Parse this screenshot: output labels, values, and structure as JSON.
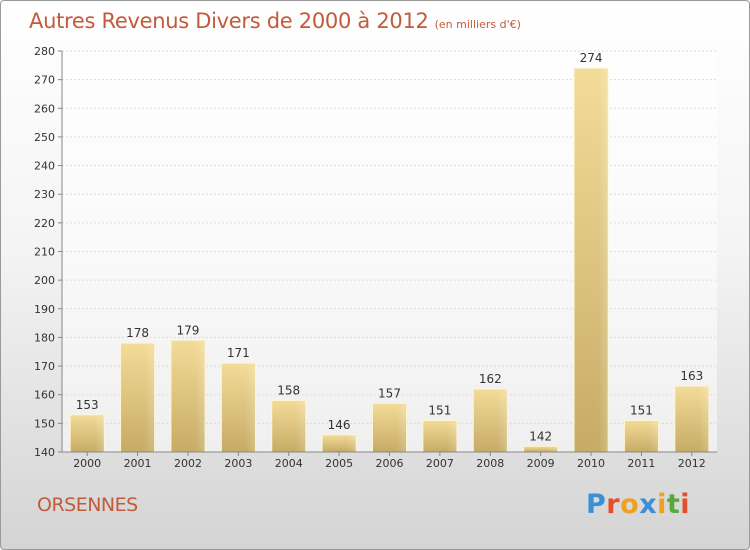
{
  "title": "Autres Revenus Divers de 2000 à 2012",
  "subtitle": "(en milliers d'€)",
  "location": "ORSENNES",
  "logo": {
    "letters": [
      "P",
      "r",
      "o",
      "x",
      "i",
      "t",
      "i"
    ],
    "colors": [
      "#3a8fd8",
      "#e0502a",
      "#f0a020",
      "#3a8fd8",
      "#f0a020",
      "#5aa83a",
      "#e0502a"
    ]
  },
  "chart_data": {
    "type": "bar",
    "categories": [
      "2000",
      "2001",
      "2002",
      "2003",
      "2004",
      "2005",
      "2006",
      "2007",
      "2008",
      "2009",
      "2010",
      "2011",
      "2012"
    ],
    "values": [
      153,
      178,
      179,
      171,
      158,
      146,
      157,
      151,
      162,
      142,
      274,
      151,
      163
    ],
    "data_labels": [
      "153",
      "178",
      "179",
      "171",
      "158",
      "146",
      "157",
      "151",
      "162",
      "142",
      "274",
      "151",
      "163"
    ],
    "yticks": [
      "140",
      "150",
      "160",
      "170",
      "180",
      "190",
      "200",
      "210",
      "220",
      "230",
      "240",
      "250",
      "260",
      "270",
      "280"
    ],
    "ylim": [
      140,
      280
    ],
    "grid": true,
    "bar_color": "#e8cc85"
  }
}
